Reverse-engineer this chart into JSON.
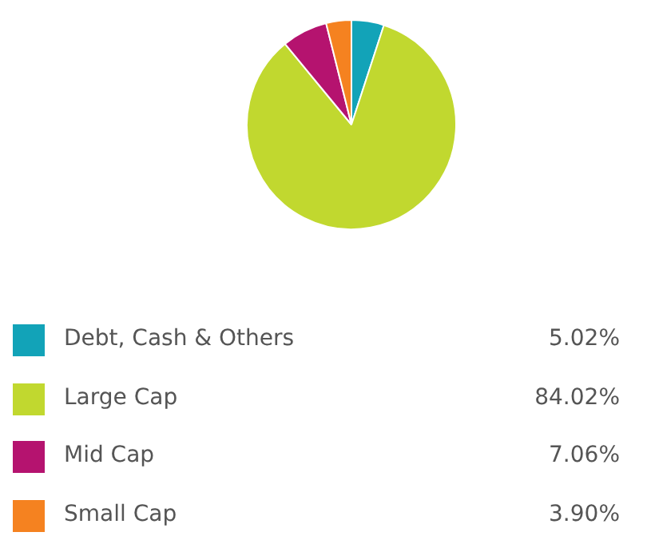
{
  "chart_data": {
    "type": "pie",
    "categories": [
      "Debt, Cash & Others",
      "Large Cap",
      "Mid Cap",
      "Small Cap"
    ],
    "values": [
      5.02,
      84.02,
      7.06,
      3.9
    ],
    "colors": [
      "#12a3b8",
      "#c1d82f",
      "#b5136f",
      "#f58220"
    ],
    "value_labels": [
      "5.02%",
      "84.02%",
      "7.06%",
      "3.90%"
    ],
    "legend": "bottom"
  }
}
